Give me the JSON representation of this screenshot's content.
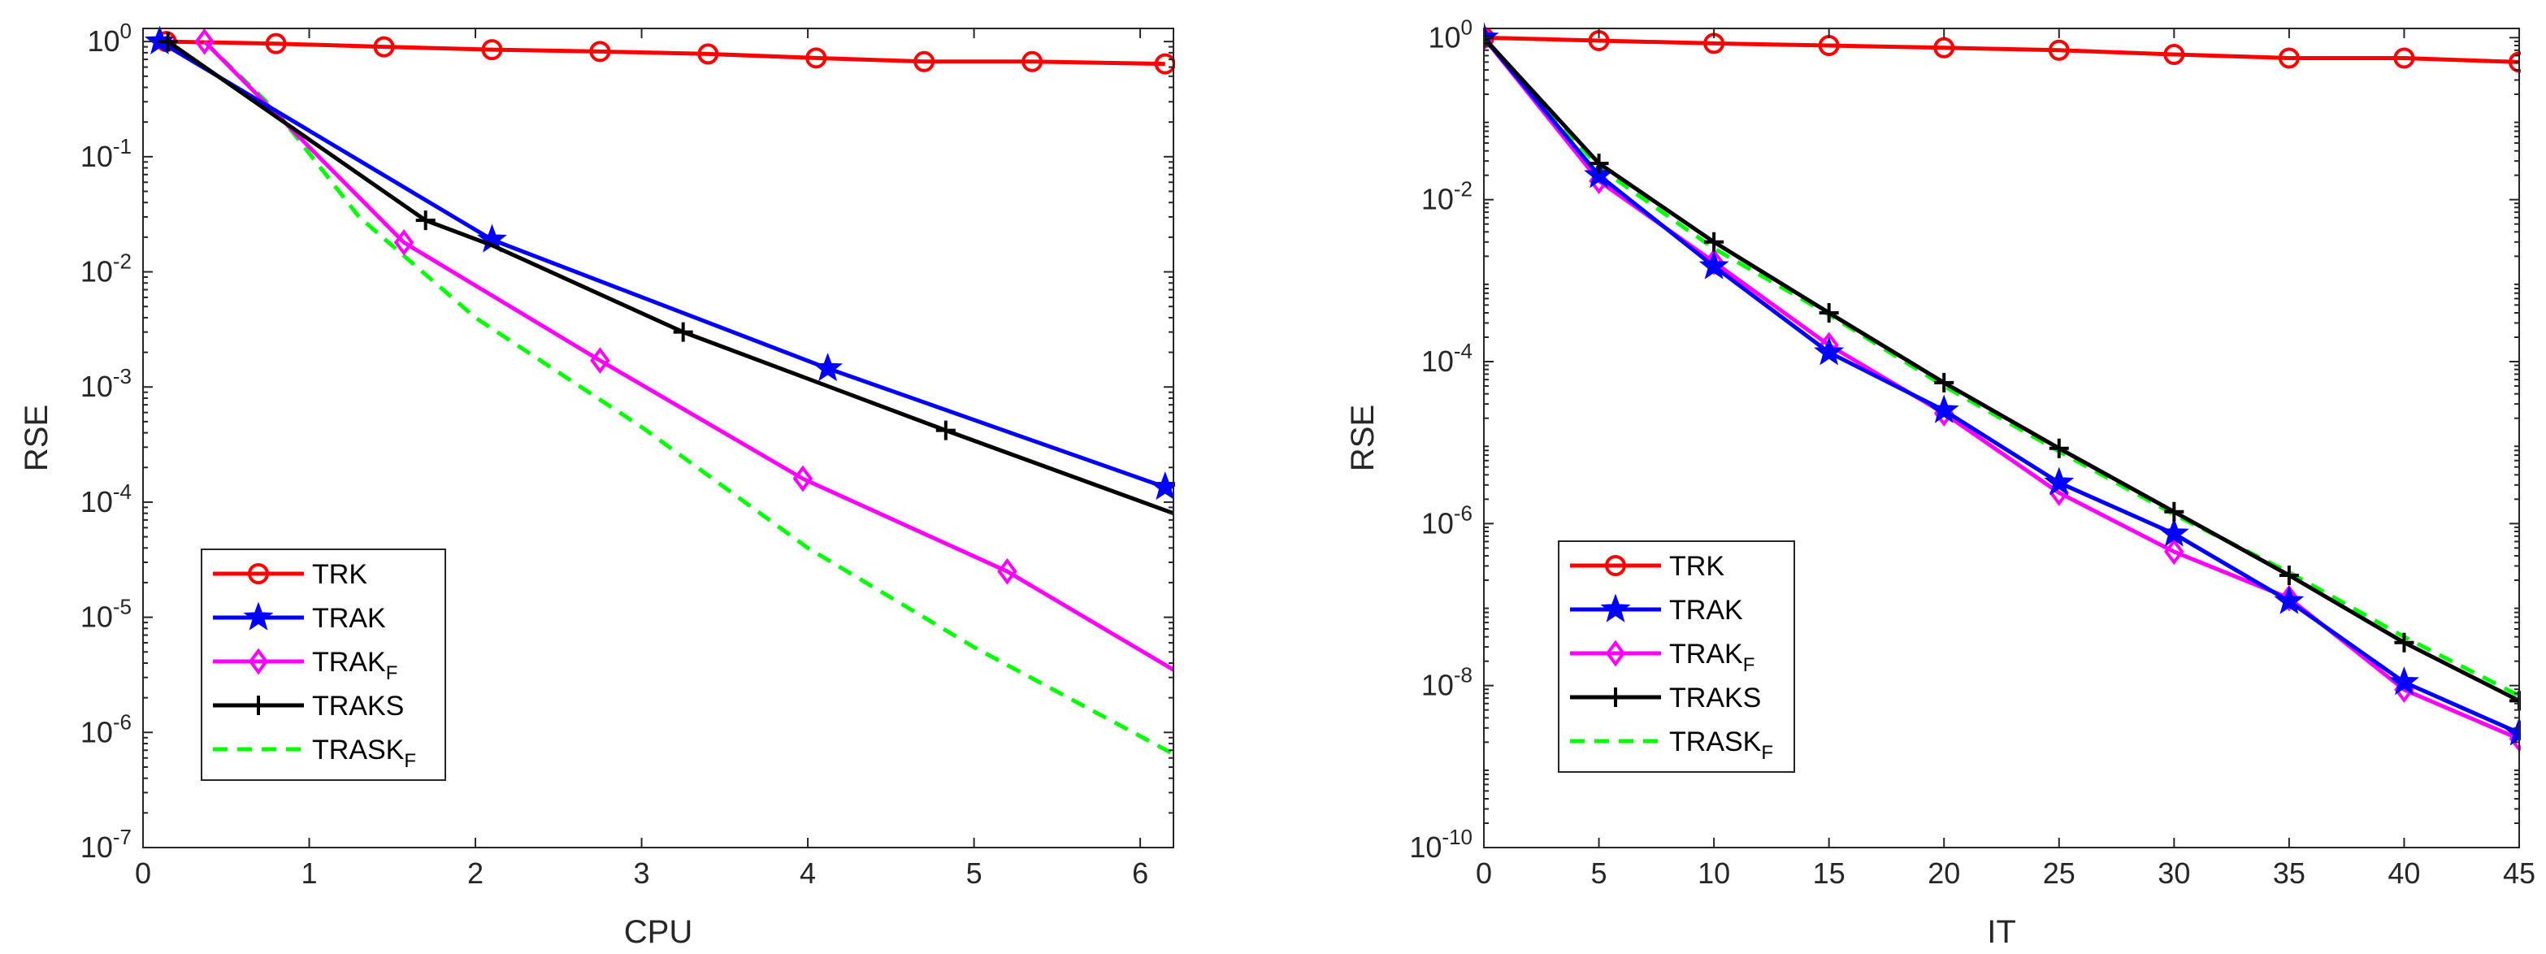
{
  "chart_data": [
    {
      "type": "line",
      "id": "left",
      "xlabel": "CPU",
      "ylabel": "RSE",
      "yscale": "log",
      "xlim": [
        0,
        6.2
      ],
      "ylim": [
        1e-07,
        1.3
      ],
      "xticks": [
        0,
        1,
        2,
        3,
        4,
        5,
        6
      ],
      "xtick_labels": [
        "0",
        "1",
        "2",
        "3",
        "4",
        "5",
        "6"
      ],
      "yticks": [
        {
          "exp": 0,
          "base": "10",
          "sup": "0"
        },
        {
          "exp": -1,
          "base": "10",
          "sup": "-1"
        },
        {
          "exp": -2,
          "base": "10",
          "sup": "-2"
        },
        {
          "exp": -3,
          "base": "10",
          "sup": "-3"
        },
        {
          "exp": -4,
          "base": "10",
          "sup": "-4"
        },
        {
          "exp": -5,
          "base": "10",
          "sup": "-5"
        },
        {
          "exp": -6,
          "base": "10",
          "sup": "-6"
        },
        {
          "exp": -7,
          "base": "10",
          "sup": "-7"
        }
      ],
      "legend_position": "lower-left",
      "series": [
        {
          "key": "trk",
          "name": "TRK",
          "sub": "",
          "color": "#ff0000",
          "dash": "solid",
          "marker": "circle",
          "x": [
            0.14,
            0.8,
            1.45,
            2.1,
            2.75,
            3.4,
            4.05,
            4.7,
            5.35,
            6.15
          ],
          "y": [
            1.0,
            0.96,
            0.9,
            0.85,
            0.82,
            0.78,
            0.72,
            0.67,
            0.67,
            0.64
          ],
          "marker_idx": [
            0,
            1,
            2,
            3,
            4,
            5,
            6,
            7,
            8,
            9
          ]
        },
        {
          "key": "trak",
          "name": "TRAK",
          "sub": "",
          "color": "#0000ff",
          "dash": "solid",
          "marker": "star",
          "x": [
            0.1,
            2.1,
            4.12,
            6.15
          ],
          "y": [
            1.0,
            0.019,
            0.00145,
            0.000135
          ],
          "marker_idx": [
            0,
            1,
            2,
            3
          ]
        },
        {
          "key": "trakf",
          "name": "TRAK",
          "sub": "F",
          "color": "#ff00ff",
          "dash": "solid",
          "marker": "diamond",
          "x": [
            0.37,
            1.57,
            2.75,
            3.97,
            5.2,
            6.2
          ],
          "y": [
            1.0,
            0.018,
            0.0017,
            0.00016,
            2.5e-05,
            3.5e-06
          ],
          "marker_idx": [
            0,
            1,
            2,
            3,
            4
          ]
        },
        {
          "key": "traks",
          "name": "TRAKS",
          "sub": "",
          "color": "#000000",
          "dash": "solid",
          "marker": "plus",
          "x": [
            0.15,
            1.7,
            2.1,
            3.25,
            4.83,
            6.2
          ],
          "y": [
            1.0,
            0.028,
            0.017,
            0.003,
            0.00042,
            8e-05
          ],
          "marker_idx": [
            0,
            1,
            3,
            4
          ]
        },
        {
          "key": "traskf",
          "name": "TRASK",
          "sub": "F",
          "color": "#00ff00",
          "dash": "dash",
          "marker": "none",
          "x": [
            0.37,
            0.8,
            1.3,
            2.0,
            3.0,
            4.0,
            5.0,
            6.2
          ],
          "y": [
            1.0,
            0.25,
            0.03,
            0.004,
            0.00045,
            4e-05,
            5.5e-06,
            6.5e-07
          ],
          "marker_idx": []
        }
      ]
    },
    {
      "type": "line",
      "id": "right",
      "xlabel": "IT",
      "ylabel": "RSE",
      "yscale": "log",
      "xlim": [
        0,
        45
      ],
      "ylim": [
        1e-10,
        1.3
      ],
      "xticks": [
        0,
        5,
        10,
        15,
        20,
        25,
        30,
        35,
        40,
        45
      ],
      "xtick_labels": [
        "0",
        "5",
        "10",
        "15",
        "20",
        "25",
        "30",
        "35",
        "40",
        "45"
      ],
      "yticks": [
        {
          "exp": 0,
          "base": "10",
          "sup": "0"
        },
        {
          "exp": -2,
          "base": "10",
          "sup": "-2"
        },
        {
          "exp": -4,
          "base": "10",
          "sup": "-4"
        },
        {
          "exp": -6,
          "base": "10",
          "sup": "-6"
        },
        {
          "exp": -8,
          "base": "10",
          "sup": "-8"
        },
        {
          "exp": -10,
          "base": "10",
          "sup": "-10"
        }
      ],
      "legend_position": "lower-left",
      "series": [
        {
          "key": "trk",
          "name": "TRK",
          "sub": "",
          "color": "#ff0000",
          "dash": "solid",
          "marker": "circle",
          "x": [
            0,
            5,
            10,
            15,
            20,
            25,
            30,
            35,
            40,
            45
          ],
          "y": [
            1.0,
            0.92,
            0.85,
            0.8,
            0.75,
            0.7,
            0.62,
            0.56,
            0.56,
            0.5
          ],
          "marker_idx": [
            0,
            1,
            2,
            3,
            4,
            5,
            6,
            7,
            8,
            9
          ]
        },
        {
          "key": "trak",
          "name": "TRAK",
          "sub": "",
          "color": "#0000ff",
          "dash": "solid",
          "marker": "star",
          "x": [
            0,
            5,
            10,
            15,
            20,
            25,
            30,
            35,
            40,
            45
          ],
          "y": [
            1.0,
            0.02,
            0.0015,
            0.00013,
            2.5e-05,
            3.2e-06,
            7.5e-07,
            1.1e-07,
            1.1e-08,
            2.6e-09
          ],
          "marker_idx": [
            0,
            1,
            2,
            3,
            4,
            5,
            6,
            7,
            8,
            9
          ]
        },
        {
          "key": "trakf",
          "name": "TRAK",
          "sub": "F",
          "color": "#ff00ff",
          "dash": "solid",
          "marker": "diamond",
          "x": [
            0,
            5,
            10,
            15,
            20,
            25,
            30,
            35,
            40,
            45
          ],
          "y": [
            1.0,
            0.017,
            0.0017,
            0.00016,
            2.3e-05,
            2.4e-06,
            4.5e-07,
            1.2e-07,
            8.9e-09,
            2.2e-09
          ],
          "marker_idx": [
            0,
            1,
            2,
            3,
            4,
            5,
            6,
            7,
            8,
            9
          ]
        },
        {
          "key": "traks",
          "name": "TRAKS",
          "sub": "",
          "color": "#000000",
          "dash": "solid",
          "marker": "plus",
          "x": [
            0,
            5,
            10,
            15,
            20,
            25,
            30,
            35,
            40,
            45
          ],
          "y": [
            1.0,
            0.028,
            0.003,
            0.0004,
            5.5e-05,
            8.5e-06,
            1.4e-06,
            2.3e-07,
            3.4e-08,
            6.5e-09
          ],
          "marker_idx": [
            0,
            1,
            2,
            3,
            4,
            5,
            6,
            7,
            8,
            9
          ]
        },
        {
          "key": "traskf",
          "name": "TRASK",
          "sub": "F",
          "color": "#00ff00",
          "dash": "dash",
          "marker": "none",
          "x": [
            0,
            5,
            10,
            15,
            20,
            25,
            30,
            35,
            40,
            45
          ],
          "y": [
            1.0,
            0.025,
            0.0025,
            0.00038,
            5e-05,
            7.8e-06,
            1.3e-06,
            2.5e-07,
            4e-08,
            7.5e-09
          ],
          "marker_idx": []
        }
      ]
    }
  ]
}
